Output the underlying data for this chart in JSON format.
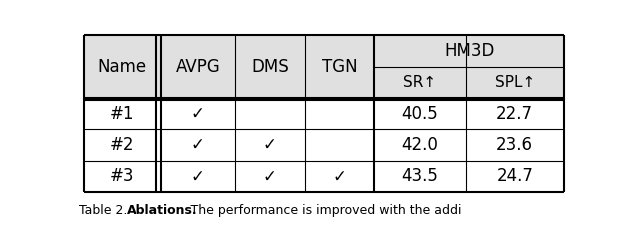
{
  "header_row1": [
    "Name",
    "AVPG",
    "DMS",
    "TGN",
    "HM3D"
  ],
  "header_row2": [
    "SR↑",
    "SPL↑"
  ],
  "rows": [
    [
      "#1",
      "✓",
      "",
      "",
      "40.5",
      "22.7"
    ],
    [
      "#2",
      "✓",
      "✓",
      "",
      "42.0",
      "23.6"
    ],
    [
      "#3",
      "✓",
      "✓",
      "✓",
      "43.5",
      "24.7"
    ]
  ],
  "bg_header": "#e0e0e0",
  "bg_white": "#ffffff",
  "fontsize": 12,
  "caption": "Table 2. ",
  "caption_bold": "Ablations.",
  "caption_rest": " The performance is improved with the addi",
  "border_color": "#000000"
}
